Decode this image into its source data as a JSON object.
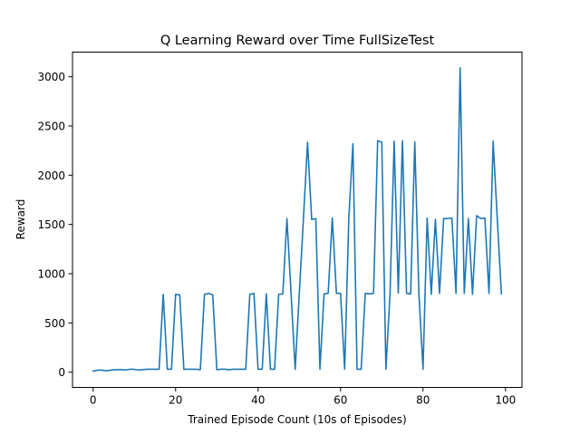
{
  "chart_data": {
    "type": "line",
    "title": "Q Learning Reward over Time FullSizeTest",
    "xlabel": "Trained Episode Count (10s of Episodes)",
    "ylabel": "Reward",
    "xlim": [
      -5,
      104
    ],
    "ylim": [
      -155,
      3250
    ],
    "xticks": [
      0,
      20,
      40,
      60,
      80,
      100
    ],
    "yticks": [
      0,
      500,
      1000,
      1500,
      2000,
      2500,
      3000
    ],
    "grid": false,
    "legend": "none",
    "color": "#1f77b4",
    "series": [
      {
        "x": [
          0,
          1,
          2,
          3,
          4,
          5,
          6,
          7,
          8,
          9,
          10,
          11,
          12,
          13,
          14,
          15,
          16,
          17,
          18,
          19,
          20,
          21,
          22,
          23,
          24,
          25,
          26,
          27,
          28,
          29,
          30,
          31,
          32,
          33,
          34,
          35,
          36,
          37,
          38,
          39,
          40,
          41,
          42,
          43,
          44,
          45,
          46,
          47,
          48,
          49,
          50,
          51,
          52,
          53,
          54,
          55,
          56,
          57,
          58,
          59,
          60,
          61,
          62,
          63,
          64,
          65,
          66,
          67,
          68,
          69,
          70,
          71,
          72,
          73,
          74,
          75,
          76,
          77,
          78,
          79,
          80,
          81,
          82,
          83,
          84,
          85,
          86,
          87,
          88,
          89,
          90,
          91,
          92,
          93,
          94,
          95,
          96,
          97,
          98,
          99
        ],
        "values": [
          10,
          20,
          20,
          15,
          18,
          25,
          25,
          25,
          22,
          30,
          28,
          22,
          25,
          30,
          30,
          30,
          30,
          790,
          30,
          30,
          790,
          785,
          30,
          30,
          30,
          30,
          25,
          790,
          800,
          785,
          25,
          30,
          30,
          25,
          30,
          30,
          30,
          30,
          790,
          800,
          30,
          30,
          795,
          30,
          30,
          790,
          795,
          1560,
          800,
          30,
          800,
          1560,
          2335,
          1550,
          1560,
          30,
          795,
          800,
          1565,
          800,
          800,
          30,
          1560,
          2320,
          30,
          30,
          800,
          795,
          800,
          2350,
          2335,
          30,
          800,
          2345,
          805,
          2350,
          800,
          795,
          2340,
          800,
          30,
          1565,
          790,
          1550,
          800,
          1560,
          1560,
          1565,
          800,
          3090,
          800,
          1560,
          790,
          1590,
          1560,
          1565,
          800,
          2345,
          1560,
          795
        ]
      }
    ]
  }
}
